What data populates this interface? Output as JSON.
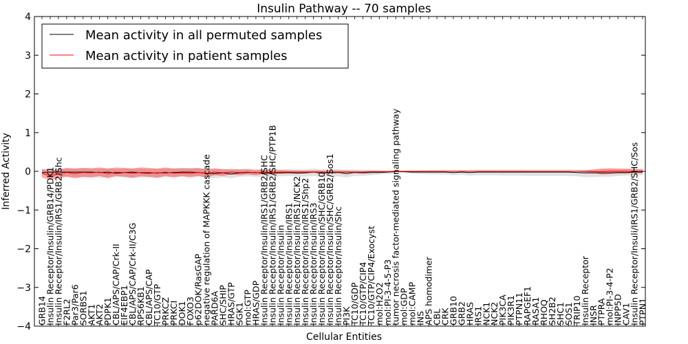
{
  "chart_data": {
    "type": "line",
    "title": "Insulin Pathway -- 70 samples",
    "xlabel": "Cellular Entities",
    "ylabel": "Inferred Activity",
    "ylim": [
      -4,
      4
    ],
    "yticks": [
      -4,
      -3,
      -2,
      -1,
      0,
      1,
      2,
      3,
      4
    ],
    "legend_position": "top-left",
    "categories": [
      "GRB14",
      "Insulin Receptor/Insulin/GRB14/PDK1",
      "Insulin Receptor/Insulin/IRS1/GRB2/Shc",
      "F2RL2",
      "Par3/Par6",
      "SORBS1",
      "AKT1",
      "AKT2",
      "PDPK1",
      "CBL/APS/CAP/Crk-II",
      "EIF4EBP1",
      "CBL/APS/CAP/Crk-II/C3G",
      "RPS6KB1",
      "CBL/APS/CAP",
      "TC10/GTP",
      "PRKCZ",
      "PRKCI",
      "DOK1",
      "FOXO3",
      "p62DOK/RasGAP",
      "negative regulation of MAPKKK cascade",
      "PARD6A",
      "SHC/SHIP",
      "HRAS/GTP",
      "SGK1",
      "mol:GTP",
      "HRAS/GDP",
      "Insulin Receptor/Insulin/IRS1/GRB2/SHC",
      "Insulin Receptor/Insulin/IRS1/GRB2/SHC/PTP1B",
      "Insulin Receptor/Insulin",
      "Insulin Receptor/Insulin/IRS1",
      "Insulin Receptor/Insulin/IRS1/NCK2",
      "Insulin Receptor/Insulin/IRS1/Shp2",
      "Insulin Receptor/Insulin/IRS3",
      "Insulin Receptor/Insulin/SHC/GRB10",
      "Insulin Receptor/Insulin/SHC/GRB2/Sos1",
      "Insulin Receptor/Insulin/Shc",
      "PI3K",
      "TC10/GDP",
      "TC10/GTP/CIP4",
      "TC10/GTP/CIP4/Exocyst",
      "mol:H2O2",
      "mol:PI-3-4-5-P3",
      "tumor necrosis factor-mediated signaling pathway",
      "mol:GDP",
      "mol:CAMP",
      "INS",
      "APS homodimer",
      "CBL",
      "CRK",
      "GRB10",
      "GRB2",
      "HRAS",
      "IRS1",
      "NCK1",
      "NCK2",
      "PIK3CA",
      "PIK3R1",
      "PTPN11",
      "RAPGEF1",
      "RASA1",
      "RHOQ",
      "SH2B2",
      "SHC1",
      "SOS1",
      "TRIP10",
      "Insulin Receptor",
      "INSR",
      "PTPRA",
      "mol:PI-3-4-P2",
      "INPP5D",
      "CAV1",
      "Insulin Receptor/Insuli/IRS1/GRB2/SHC/Sos",
      "PTPN1"
    ],
    "series": [
      {
        "name": "Mean activity in all permuted samples",
        "color": "#000000",
        "values": [
          -0.03,
          -0.02,
          -0.02,
          -0.02,
          -0.02,
          -0.02,
          -0.02,
          -0.03,
          -0.02,
          -0.05,
          -0.03,
          -0.02,
          -0.04,
          -0.05,
          -0.04,
          -0.04,
          -0.03,
          -0.02,
          -0.02,
          -0.03,
          -0.05,
          -0.06,
          -0.04,
          -0.07,
          -0.04,
          -0.03,
          -0.03,
          -0.05,
          -0.04,
          -0.04,
          -0.03,
          -0.05,
          -0.04,
          -0.02,
          -0.05,
          -0.04,
          -0.03,
          -0.06,
          -0.03,
          -0.04,
          -0.03,
          -0.03,
          -0.02,
          -0.01,
          -0.01,
          -0.02,
          -0.02,
          -0.02,
          -0.02,
          -0.02,
          -0.03,
          -0.02,
          -0.03,
          -0.02,
          -0.02,
          -0.02,
          -0.02,
          -0.02,
          -0.02,
          -0.02,
          -0.02,
          -0.02,
          -0.02,
          -0.02,
          -0.02,
          -0.03,
          -0.04,
          -0.04,
          -0.04,
          -0.04,
          -0.03,
          -0.03,
          -0.02,
          -0.02
        ],
        "lower": [
          -0.1,
          -0.1,
          -0.12,
          -0.14,
          -0.15,
          -0.16,
          -0.15,
          -0.17,
          -0.15,
          -0.15,
          -0.16,
          -0.17,
          -0.16,
          -0.16,
          -0.17,
          -0.15,
          -0.14,
          -0.13,
          -0.13,
          -0.14,
          -0.16,
          -0.18,
          -0.15,
          -0.18,
          -0.14,
          -0.13,
          -0.14,
          -0.15,
          -0.15,
          -0.13,
          -0.12,
          -0.14,
          -0.14,
          -0.12,
          -0.15,
          -0.14,
          -0.13,
          -0.16,
          -0.12,
          -0.12,
          -0.1,
          -0.08,
          -0.07,
          -0.05,
          -0.05,
          -0.06,
          -0.07,
          -0.08,
          -0.08,
          -0.08,
          -0.1,
          -0.09,
          -0.11,
          -0.1,
          -0.1,
          -0.1,
          -0.11,
          -0.11,
          -0.11,
          -0.12,
          -0.12,
          -0.12,
          -0.12,
          -0.12,
          -0.12,
          -0.13,
          -0.15,
          -0.15,
          -0.14,
          -0.14,
          -0.12,
          -0.11,
          -0.1,
          -0.1
        ],
        "upper": [
          0.05,
          0.06,
          0.06,
          0.07,
          0.08,
          0.08,
          0.07,
          0.07,
          0.08,
          0.06,
          0.07,
          0.08,
          0.07,
          0.06,
          0.07,
          0.07,
          0.08,
          0.09,
          0.09,
          0.08,
          0.06,
          0.05,
          0.07,
          0.04,
          0.06,
          0.07,
          0.06,
          0.05,
          0.06,
          0.05,
          0.06,
          0.05,
          0.05,
          0.07,
          0.05,
          0.05,
          0.06,
          0.04,
          0.05,
          0.04,
          0.04,
          0.03,
          0.02,
          0.02,
          0.02,
          0.02,
          0.03,
          0.04,
          0.04,
          0.04,
          0.04,
          0.04,
          0.04,
          0.05,
          0.05,
          0.05,
          0.05,
          0.05,
          0.05,
          0.05,
          0.05,
          0.05,
          0.05,
          0.05,
          0.05,
          0.05,
          0.04,
          0.04,
          0.05,
          0.05,
          0.05,
          0.05,
          0.05,
          0.05
        ]
      },
      {
        "name": "Mean activity in patient samples",
        "color": "#ff0000",
        "values": [
          -0.05,
          -0.12,
          -0.07,
          -0.03,
          -0.06,
          -0.03,
          -0.04,
          -0.02,
          -0.06,
          -0.02,
          -0.03,
          -0.05,
          -0.03,
          -0.03,
          -0.05,
          -0.02,
          -0.05,
          -0.04,
          -0.05,
          -0.03,
          -0.06,
          -0.02,
          -0.04,
          -0.02,
          -0.03,
          -0.02,
          -0.04,
          -0.02,
          -0.03,
          -0.02,
          -0.02,
          -0.02,
          -0.02,
          -0.02,
          -0.02,
          -0.02,
          -0.02,
          -0.02,
          -0.02,
          -0.02,
          -0.01,
          -0.01,
          -0.01,
          0.0,
          0.0,
          0.0,
          0.0,
          0.0,
          0.0,
          0.0,
          0.0,
          0.0,
          0.0,
          0.0,
          0.0,
          0.0,
          0.0,
          0.0,
          0.0,
          0.0,
          0.0,
          0.0,
          0.0,
          0.0,
          0.0,
          0.0,
          0.0,
          -0.01,
          -0.01,
          0.0,
          0.0,
          0.0,
          0.0,
          0.0
        ],
        "lower": [
          -0.16,
          -0.22,
          -0.18,
          -0.14,
          -0.18,
          -0.14,
          -0.16,
          -0.12,
          -0.18,
          -0.12,
          -0.14,
          -0.17,
          -0.13,
          -0.14,
          -0.17,
          -0.12,
          -0.16,
          -0.13,
          -0.16,
          -0.12,
          -0.16,
          -0.1,
          -0.12,
          -0.08,
          -0.1,
          -0.08,
          -0.1,
          -0.07,
          -0.08,
          -0.06,
          -0.06,
          -0.05,
          -0.05,
          -0.04,
          -0.04,
          -0.04,
          -0.04,
          -0.04,
          -0.03,
          -0.03,
          -0.02,
          -0.02,
          -0.02,
          -0.01,
          -0.01,
          -0.01,
          -0.01,
          -0.01,
          -0.01,
          -0.01,
          -0.01,
          -0.01,
          -0.01,
          -0.01,
          -0.01,
          -0.01,
          -0.01,
          -0.01,
          -0.01,
          -0.01,
          -0.01,
          -0.01,
          -0.01,
          -0.01,
          -0.01,
          -0.01,
          -0.02,
          -0.04,
          -0.08,
          -0.07,
          -0.06,
          -0.06,
          -0.05,
          -0.05
        ],
        "upper": [
          0.06,
          0.02,
          0.05,
          0.09,
          0.07,
          0.09,
          0.08,
          0.1,
          0.07,
          0.1,
          0.09,
          0.07,
          0.1,
          0.09,
          0.07,
          0.1,
          0.07,
          0.08,
          0.07,
          0.09,
          0.05,
          0.08,
          0.05,
          0.06,
          0.05,
          0.05,
          0.03,
          0.04,
          0.03,
          0.03,
          0.02,
          0.02,
          0.02,
          0.02,
          0.02,
          0.02,
          0.02,
          0.02,
          0.01,
          0.01,
          0.01,
          0.01,
          0.01,
          0.01,
          0.01,
          0.01,
          0.01,
          0.01,
          0.01,
          0.01,
          0.01,
          0.01,
          0.01,
          0.01,
          0.01,
          0.01,
          0.01,
          0.01,
          0.01,
          0.01,
          0.01,
          0.01,
          0.01,
          0.01,
          0.01,
          0.01,
          0.02,
          0.05,
          0.07,
          0.08,
          0.07,
          0.07,
          0.06,
          0.06
        ]
      }
    ]
  }
}
